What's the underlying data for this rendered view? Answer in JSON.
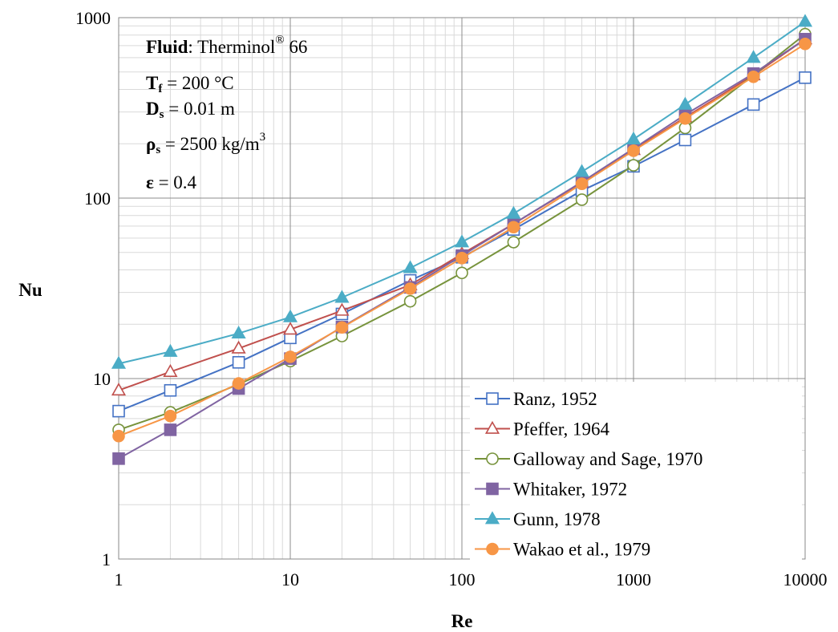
{
  "chart_data": {
    "type": "line",
    "xlabel": "Re",
    "ylabel": "Nu",
    "x_scale": "log",
    "y_scale": "log",
    "xlim": [
      1,
      10000
    ],
    "ylim": [
      1,
      1000
    ],
    "x_ticks": [
      "1",
      "10",
      "100",
      "1000",
      "10000"
    ],
    "y_ticks": [
      "1",
      "10",
      "100",
      "1000"
    ],
    "grid": true,
    "legend_position": "bottom-right",
    "x": [
      1,
      2,
      5,
      10,
      20,
      50,
      100,
      200,
      500,
      1000,
      2000,
      5000,
      10000
    ],
    "annotations": [
      {
        "bold": "Fluid",
        "text": ": Therminol",
        "sup": "®",
        "tail": " 66"
      },
      {
        "bold": "T",
        "sub": "f",
        "text": " = 200 °C"
      },
      {
        "bold": "D",
        "sub": "s",
        "text": " = 0.01 m"
      },
      {
        "bold": "ρ",
        "sub": "s",
        "text": " = 2500 kg/m",
        "sup": "3"
      },
      {
        "bold": "ε",
        "text": " = 0.4"
      }
    ],
    "series": [
      {
        "name": "Ranz, 1952",
        "color": "#4472C4",
        "marker": "square-open",
        "values": [
          6.6,
          8.6,
          12.3,
          16.8,
          22.8,
          35,
          47,
          67,
          110,
          150,
          210,
          330,
          465
        ]
      },
      {
        "name": "Pfeffer, 1964",
        "color": "#C0504D",
        "marker": "triangle-open",
        "values": [
          8.6,
          10.9,
          14.7,
          18.7,
          23.8,
          33,
          49,
          72,
          122,
          185,
          280,
          480,
          760
        ]
      },
      {
        "name": "Galloway and Sage, 1970",
        "color": "#77933C",
        "marker": "circle-open",
        "values": [
          5.2,
          6.5,
          9.3,
          12.5,
          17.2,
          26.8,
          38.5,
          57,
          98,
          152,
          245,
          480,
          810
        ]
      },
      {
        "name": "Whitaker, 1972",
        "color": "#8064A2",
        "marker": "square-filled",
        "values": [
          3.6,
          5.2,
          8.8,
          12.9,
          19.3,
          32,
          48,
          72,
          123,
          188,
          290,
          490,
          760
        ]
      },
      {
        "name": "Gunn, 1978",
        "color": "#4BACC6",
        "marker": "triangle-filled",
        "values": [
          12.1,
          14.1,
          17.8,
          21.9,
          28.1,
          41,
          57,
          82,
          140,
          212,
          330,
          600,
          950
        ]
      },
      {
        "name": "Wakao et al., 1979",
        "color": "#F79646",
        "marker": "circle-filled",
        "values": [
          4.8,
          6.2,
          9.4,
          13.2,
          19.2,
          31.5,
          46.5,
          69,
          120,
          183,
          276,
          470,
          715
        ]
      }
    ]
  }
}
